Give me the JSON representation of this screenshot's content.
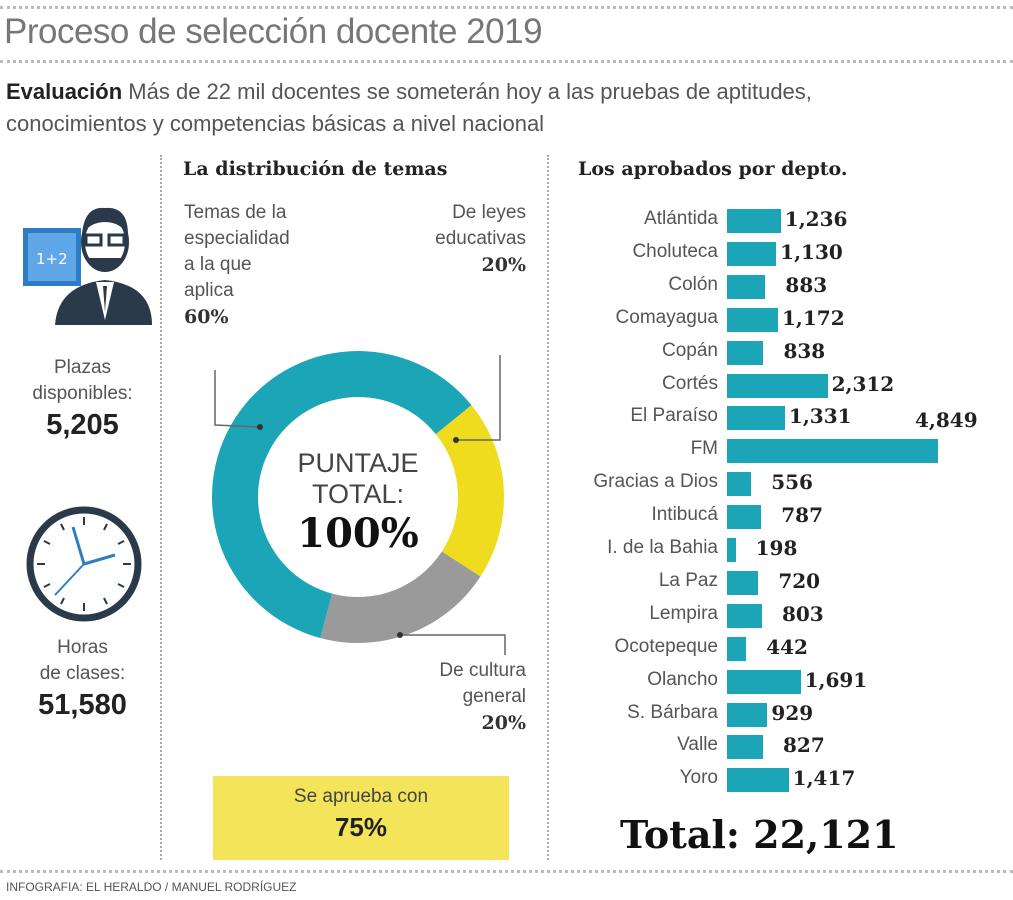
{
  "title": "Proceso de selección docente 2019",
  "subtitle": {
    "lead": "Evaluación",
    "text": "Más de 22 mil docentes se someterán hoy a las pruebas de aptitudes, conocimientos y competencias básicas a nivel nacional"
  },
  "left": {
    "plazas_label_1": "Plazas",
    "plazas_label_2": "disponibles:",
    "plazas_value": "5,205",
    "horas_label_1": "Horas",
    "horas_label_2": "de clases:",
    "horas_value": "51,580",
    "icons": [
      "teacher-icon",
      "clock-icon"
    ]
  },
  "footer": "INFOGRAFIA: EL HERALDO / MANUEL RODRÍGUEZ",
  "approve": {
    "label": "Se aprueba con",
    "value": "75%"
  },
  "chart_data": [
    {
      "type": "pie",
      "title": "La distribución de temas",
      "center_text": {
        "line1": "PUNTAJE",
        "line2": "TOTAL:",
        "line3": "100%"
      },
      "slices": [
        {
          "label": "De leyes educativas",
          "label_lines": [
            "De leyes",
            "educativas"
          ],
          "value": 20,
          "display": "20%",
          "color": "#f0dc1e"
        },
        {
          "label": "De cultura general",
          "label_lines": [
            "De cultura",
            "general"
          ],
          "value": 20,
          "display": "20%",
          "color": "#9a9a9a"
        },
        {
          "label": "Temas de la especialidad a la que aplica",
          "label_lines": [
            "Temas de la",
            "especialidad",
            "a la que",
            "aplica"
          ],
          "value": 60,
          "display": "60%",
          "color": "#1ba5b7"
        }
      ]
    },
    {
      "type": "bar",
      "orientation": "horizontal",
      "title": "Los aprobados por depto.",
      "color": "#1ba5b7",
      "categories": [
        "Atlántida",
        "Choluteca",
        "Colón",
        "Comayagua",
        "Copán",
        "Cortés",
        "El Paraíso",
        "FM",
        "Gracias a Dios",
        "Intibucá",
        "I. de la Bahia",
        "La Paz",
        "Lempira",
        "Ocotepeque",
        "Olancho",
        "S. Bárbara",
        "Valle",
        "Yoro"
      ],
      "values": [
        1236,
        1130,
        883,
        1172,
        838,
        2312,
        1331,
        4849,
        556,
        787,
        198,
        720,
        803,
        442,
        1691,
        929,
        827,
        1417
      ],
      "labels": [
        "1,236",
        "1,130",
        "883",
        "1,172",
        "838",
        "2,312",
        "1,331",
        "4,849",
        "556",
        "787",
        "198",
        "720",
        "803",
        "442",
        "1,691",
        "929",
        "827",
        "1,417"
      ],
      "total_label": "Total: 22,121"
    }
  ]
}
